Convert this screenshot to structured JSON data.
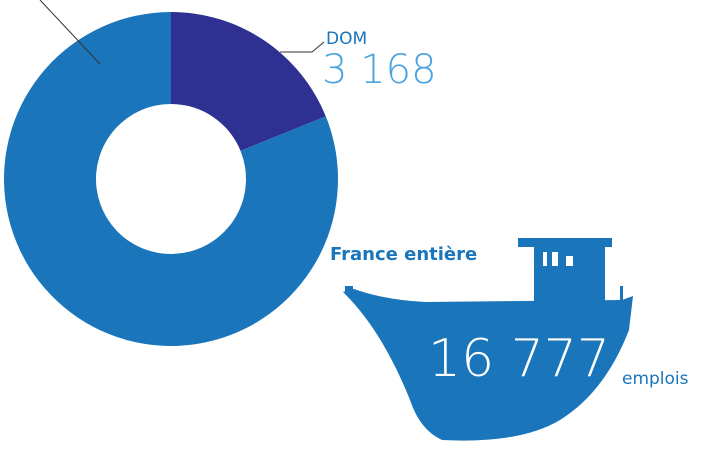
{
  "chart_data": {
    "type": "pie",
    "donut": true,
    "categories": [
      "DOM",
      null
    ],
    "values": [
      3168,
      13609
    ],
    "value_labels": [
      "3 168",
      null
    ],
    "colors": [
      "#2e3192",
      "#1a75bb"
    ],
    "total_title": "France entière",
    "total_label": "16 777",
    "unit": "emplois"
  }
}
